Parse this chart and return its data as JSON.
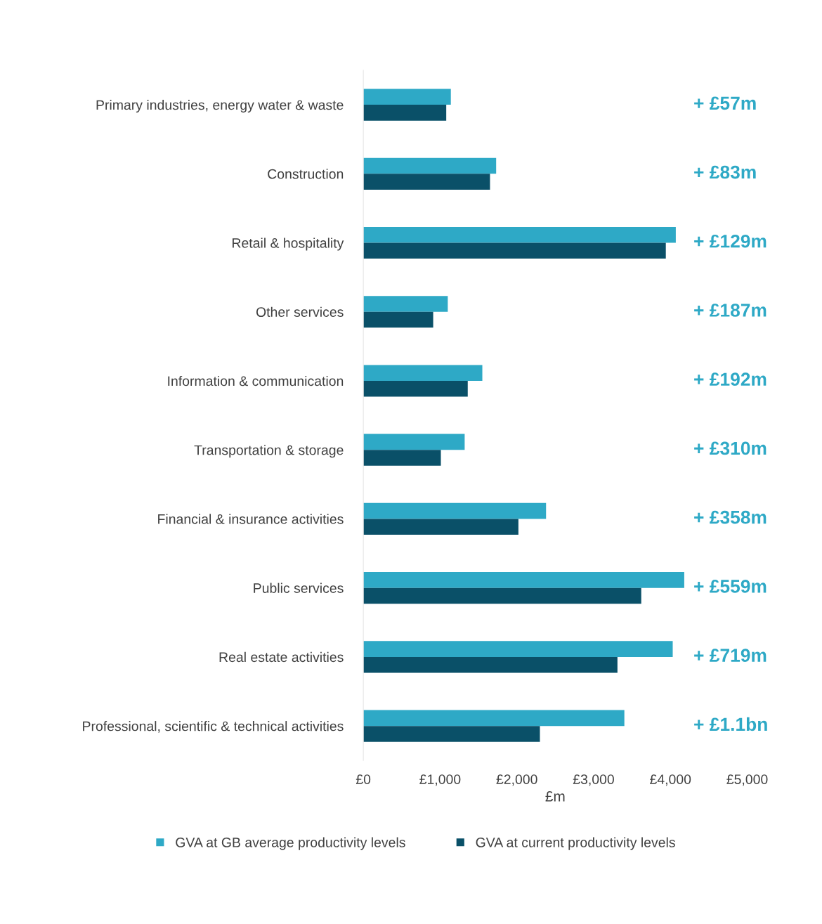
{
  "chart_data": {
    "type": "bar",
    "orientation": "horizontal",
    "categories": [
      "Primary industries, energy water & waste",
      "Construction",
      "Retail & hospitality",
      "Other services",
      "Information & communication",
      "Transportation & storage",
      "Financial & insurance activities",
      "Public services",
      "Real estate activities",
      "Professional, scientific & technical activities"
    ],
    "series": [
      {
        "name": "GVA at GB average productivity levels",
        "color": "#2ea9c6",
        "values": [
          1140,
          1730,
          4070,
          1100,
          1550,
          1320,
          2380,
          4180,
          4030,
          3400
        ]
      },
      {
        "name": "GVA at current productivity levels",
        "color": "#0a5068",
        "values": [
          1080,
          1650,
          3940,
          910,
          1360,
          1010,
          2020,
          3620,
          3310,
          2300
        ]
      }
    ],
    "xlim": [
      0,
      5000
    ],
    "xticks": [
      {
        "value": 0,
        "label": "£0"
      },
      {
        "value": 1000,
        "label": "£1,000"
      },
      {
        "value": 2000,
        "label": "£2,000"
      },
      {
        "value": 3000,
        "label": "£3,000"
      },
      {
        "value": 4000,
        "label": "£4,000"
      },
      {
        "value": 5000,
        "label": "£5,000"
      }
    ],
    "xlabel": "£m",
    "annotations": [
      "+ £57m",
      "+ £83m",
      "+ £129m",
      "+ £187m",
      "+ £192m",
      "+ £310m",
      "+ £358m",
      "+ £559m",
      "+ £719m",
      "+ £1.1bn"
    ],
    "legend": "bottom",
    "grid": false
  }
}
